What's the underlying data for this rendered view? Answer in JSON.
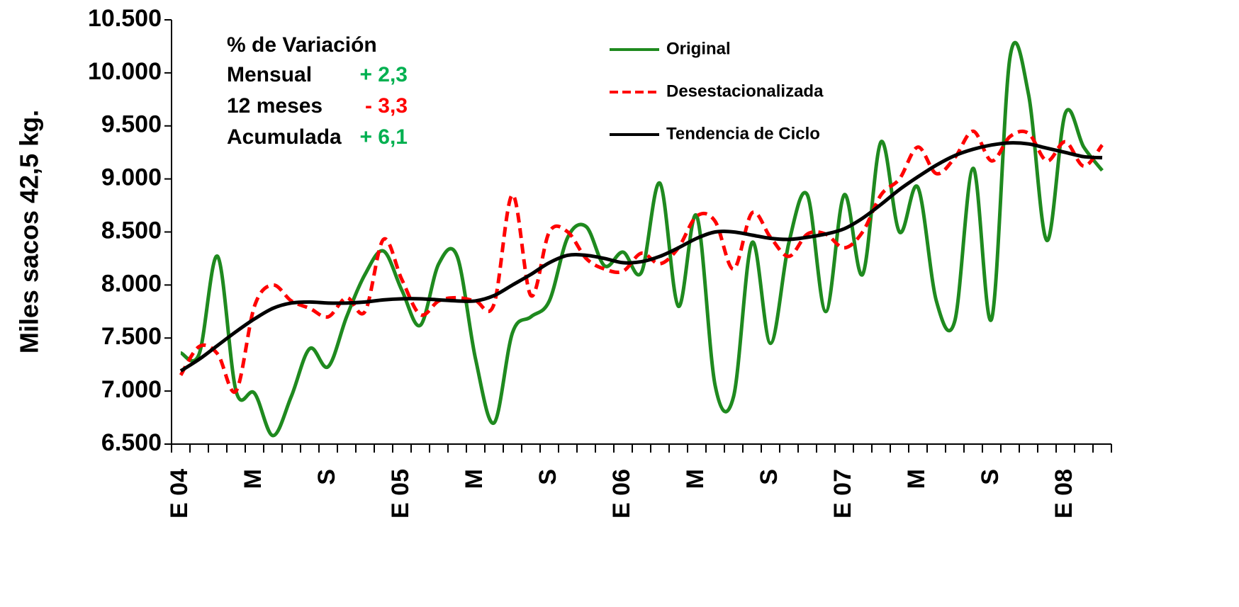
{
  "chart_data": {
    "type": "line",
    "ylabel": "Miles sacos 42,5 kg.",
    "categories": [
      "E 04",
      null,
      null,
      null,
      "M",
      null,
      null,
      null,
      "S",
      null,
      null,
      null,
      "E 05",
      null,
      null,
      null,
      "M",
      null,
      null,
      null,
      "S",
      null,
      null,
      null,
      "E 06",
      null,
      null,
      null,
      "M",
      null,
      null,
      null,
      "S",
      null,
      null,
      null,
      "E 07",
      null,
      null,
      null,
      "M",
      null,
      null,
      null,
      "S",
      null,
      null,
      null,
      "E 08",
      null,
      null
    ],
    "series": [
      {
        "name": "Original",
        "color": "#1f8a1f",
        "dash": false,
        "values": [
          7360,
          7350,
          8270,
          7000,
          6980,
          6580,
          6950,
          7400,
          7230,
          7700,
          8100,
          8320,
          7950,
          7620,
          8200,
          8270,
          7300,
          6700,
          7550,
          7700,
          7850,
          8450,
          8550,
          8180,
          8310,
          8120,
          8960,
          7800,
          8650,
          7050,
          6950,
          8400,
          7450,
          8400,
          8850,
          7750,
          8850,
          8100,
          9350,
          8500,
          8920,
          7850,
          7660,
          9100,
          7680,
          10150,
          9800,
          8420,
          9620,
          9300,
          9080
        ]
      },
      {
        "name": "Desestacionalizada",
        "color": "#ff0000",
        "dash": true,
        "values": [
          7150,
          7420,
          7350,
          7000,
          7800,
          8000,
          7850,
          7780,
          7700,
          7880,
          7750,
          8430,
          8050,
          7720,
          7850,
          7880,
          7850,
          7820,
          8850,
          7900,
          8500,
          8500,
          8250,
          8150,
          8130,
          8300,
          8200,
          8350,
          8650,
          8600,
          8150,
          8680,
          8450,
          8270,
          8480,
          8480,
          8350,
          8500,
          8850,
          9000,
          9300,
          9050,
          9200,
          9450,
          9170,
          9400,
          9430,
          9170,
          9350,
          9120,
          9320
        ]
      },
      {
        "name": "Tendencia de Ciclo",
        "color": "#000000",
        "dash": false,
        "values": [
          7190,
          7300,
          7430,
          7560,
          7680,
          7780,
          7830,
          7840,
          7830,
          7830,
          7840,
          7860,
          7870,
          7870,
          7860,
          7850,
          7850,
          7900,
          8000,
          8100,
          8210,
          8280,
          8280,
          8250,
          8210,
          8220,
          8270,
          8350,
          8440,
          8500,
          8500,
          8470,
          8440,
          8430,
          8450,
          8480,
          8530,
          8630,
          8760,
          8900,
          9020,
          9130,
          9220,
          9280,
          9320,
          9340,
          9330,
          9290,
          9250,
          9210,
          9200
        ]
      }
    ],
    "ylim": [
      6500,
      10500
    ],
    "yticks": [
      {
        "value": 6500,
        "label": "6.500"
      },
      {
        "value": 7000,
        "label": "7.000"
      },
      {
        "value": 7500,
        "label": "7.500"
      },
      {
        "value": 8000,
        "label": "8.000"
      },
      {
        "value": 8500,
        "label": "8.500"
      },
      {
        "value": 9000,
        "label": "9.000"
      },
      {
        "value": 9500,
        "label": "9.500"
      },
      {
        "value": 10000,
        "label": "10.000"
      },
      {
        "value": 10500,
        "label": "10.500"
      }
    ],
    "grid": false,
    "annotation": {
      "title": "% de Variación",
      "rows": [
        {
          "label": "Mensual",
          "value": "+  2,3",
          "color": "#00b050"
        },
        {
          "label": "12 meses",
          "value": "-  3,3",
          "color": "#ff0000"
        },
        {
          "label": "Acumulada",
          "value": "+ 6,1",
          "color": "#00b050"
        }
      ]
    }
  }
}
